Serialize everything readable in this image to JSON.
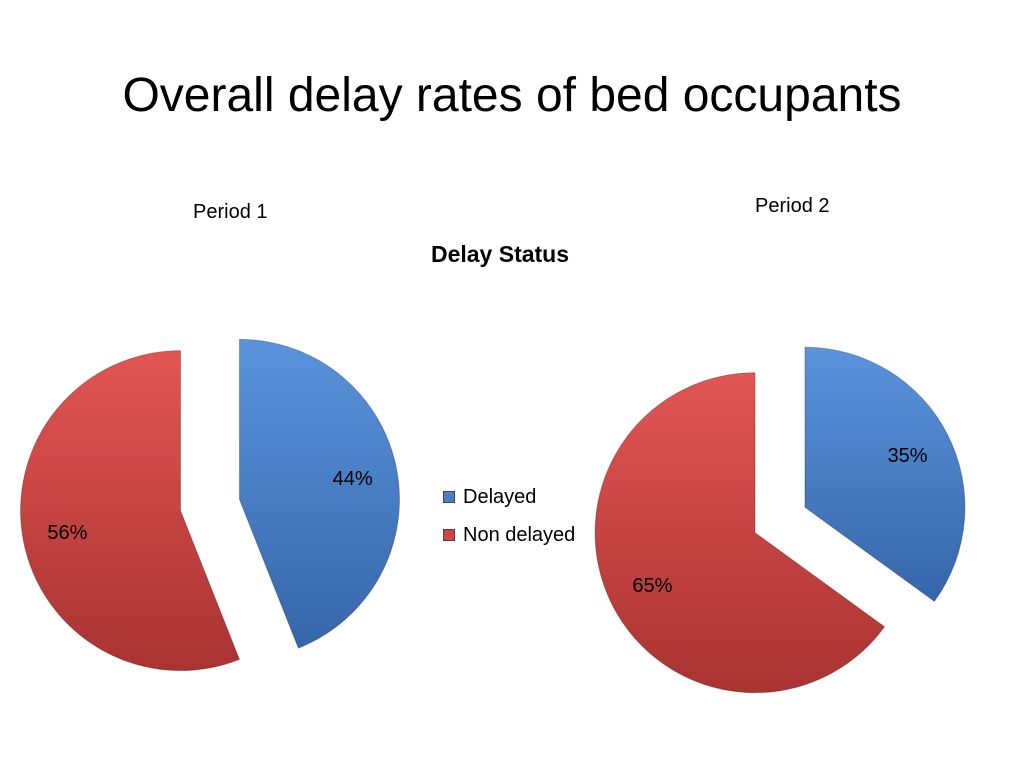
{
  "title": "Overall delay rates of bed occupants",
  "chart_data": {
    "type": "pie",
    "title": "Delay Status",
    "legend": {
      "placement": "center",
      "entries": [
        "Delayed",
        "Non delayed"
      ]
    },
    "colors": {
      "Delayed": "#4a7fc8",
      "Non delayed": "#cf4542"
    },
    "charts": [
      {
        "label": "Period 1",
        "categories": [
          "Delayed",
          "Non delayed"
        ],
        "values": [
          44,
          56
        ],
        "data_labels": [
          "44%",
          "56%"
        ]
      },
      {
        "label": "Period 2",
        "categories": [
          "Delayed",
          "Non delayed"
        ],
        "values": [
          35,
          65
        ],
        "data_labels": [
          "35%",
          "65%"
        ]
      }
    ]
  }
}
